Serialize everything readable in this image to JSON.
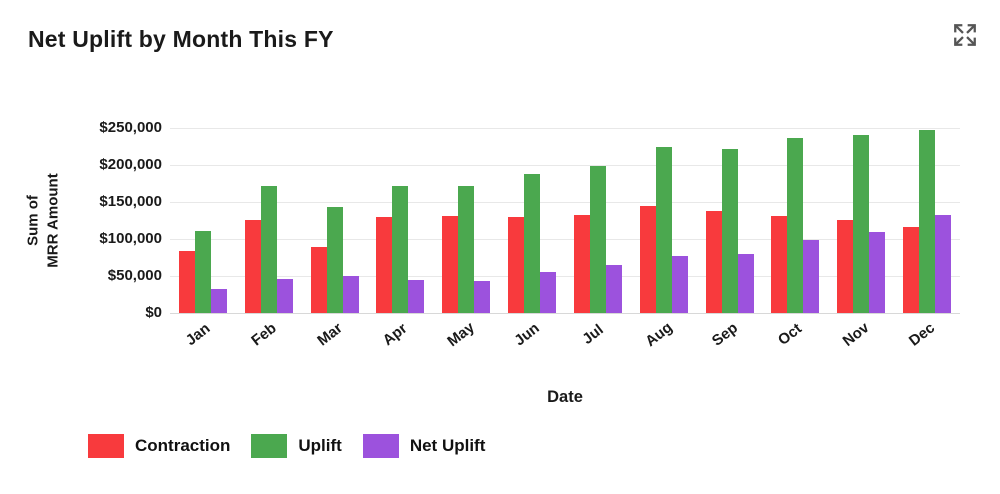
{
  "header": {
    "title": "Net Uplift by Month This FY"
  },
  "icons": {
    "expand": "expand-icon"
  },
  "colors": {
    "contraction": "#f83a3d",
    "uplift": "#4ba84f",
    "net_uplift": "#9c52dd",
    "gridline": "#e8e8e8",
    "zero_line": "#d8d8d8",
    "icon_gray": "#555555",
    "text": "#1a1a1a"
  },
  "chart_data": {
    "type": "bar",
    "title": "Net Uplift by Month This FY",
    "xlabel": "Date",
    "ylabel": "Sum of MRR Amount",
    "ylabel_lines": [
      "Sum of",
      "MRR Amount"
    ],
    "categories": [
      "Jan",
      "Feb",
      "Mar",
      "Apr",
      "May",
      "Jun",
      "Jul",
      "Aug",
      "Sep",
      "Oct",
      "Nov",
      "Dec"
    ],
    "series": [
      {
        "name": "Contraction",
        "color": "#f83a3d",
        "values": [
          84000,
          126000,
          89000,
          130000,
          131000,
          130000,
          132000,
          144000,
          138000,
          131000,
          126000,
          116000
        ]
      },
      {
        "name": "Uplift",
        "color": "#4ba84f",
        "values": [
          111000,
          172000,
          143000,
          172000,
          172000,
          188000,
          199000,
          225000,
          221000,
          236000,
          241000,
          247000
        ]
      },
      {
        "name": "Net Uplift",
        "color": "#9c52dd",
        "values": [
          32000,
          46000,
          50000,
          45000,
          43000,
          56000,
          65000,
          77000,
          80000,
          98000,
          110000,
          132000
        ]
      }
    ],
    "y_ticks": [
      {
        "value": 0,
        "label": "$0"
      },
      {
        "value": 50000,
        "label": "$50,000"
      },
      {
        "value": 100000,
        "label": "$100,000"
      },
      {
        "value": 150000,
        "label": "$150,000"
      },
      {
        "value": 200000,
        "label": "$200,000"
      },
      {
        "value": 250000,
        "label": "$250,000"
      }
    ],
    "ylim": [
      0,
      250000
    ],
    "grid": true,
    "legend_position": "bottom-left"
  }
}
